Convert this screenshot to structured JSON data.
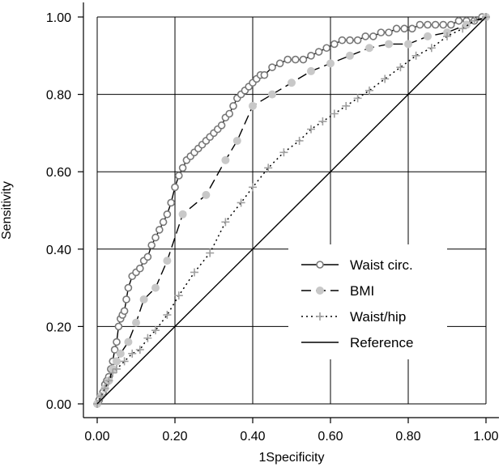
{
  "chart_data": {
    "type": "line",
    "xlabel": "1Specificity",
    "ylabel": "Sensitivity",
    "xlim": [
      0,
      1
    ],
    "ylim": [
      0,
      1
    ],
    "xticks": [
      "0.00",
      "0.20",
      "0.40",
      "0.60",
      "0.80",
      "1.00"
    ],
    "yticks": [
      "0.00",
      "0.20",
      "0.40",
      "0.60",
      "0.80",
      "1.00"
    ],
    "grid": true,
    "legend_position": "bottom-right",
    "series": [
      {
        "name": "Waist circ.",
        "style": "solid",
        "marker": "hollow-circle",
        "color": "#777777",
        "x": [
          0.0,
          0.005,
          0.01,
          0.015,
          0.02,
          0.025,
          0.03,
          0.035,
          0.04,
          0.045,
          0.05,
          0.055,
          0.06,
          0.065,
          0.07,
          0.075,
          0.08,
          0.09,
          0.1,
          0.11,
          0.12,
          0.13,
          0.14,
          0.15,
          0.16,
          0.17,
          0.18,
          0.19,
          0.2,
          0.21,
          0.22,
          0.23,
          0.24,
          0.25,
          0.26,
          0.27,
          0.28,
          0.29,
          0.3,
          0.31,
          0.32,
          0.33,
          0.34,
          0.35,
          0.36,
          0.37,
          0.38,
          0.39,
          0.4,
          0.41,
          0.42,
          0.43,
          0.45,
          0.47,
          0.49,
          0.51,
          0.53,
          0.55,
          0.57,
          0.59,
          0.61,
          0.63,
          0.65,
          0.67,
          0.69,
          0.71,
          0.73,
          0.75,
          0.77,
          0.79,
          0.81,
          0.83,
          0.85,
          0.87,
          0.89,
          0.91,
          0.93,
          0.95,
          0.97,
          0.99,
          1.0
        ],
        "y": [
          0.0,
          0.01,
          0.02,
          0.03,
          0.05,
          0.06,
          0.07,
          0.09,
          0.11,
          0.14,
          0.16,
          0.2,
          0.22,
          0.23,
          0.24,
          0.27,
          0.3,
          0.33,
          0.34,
          0.35,
          0.37,
          0.38,
          0.41,
          0.43,
          0.45,
          0.47,
          0.49,
          0.52,
          0.56,
          0.59,
          0.61,
          0.63,
          0.64,
          0.65,
          0.66,
          0.67,
          0.68,
          0.69,
          0.7,
          0.71,
          0.72,
          0.74,
          0.75,
          0.77,
          0.79,
          0.8,
          0.81,
          0.82,
          0.83,
          0.84,
          0.85,
          0.85,
          0.87,
          0.88,
          0.89,
          0.89,
          0.89,
          0.9,
          0.91,
          0.92,
          0.93,
          0.94,
          0.94,
          0.94,
          0.95,
          0.95,
          0.96,
          0.96,
          0.97,
          0.97,
          0.97,
          0.98,
          0.98,
          0.98,
          0.98,
          0.98,
          0.99,
          0.99,
          0.99,
          1.0,
          1.0
        ]
      },
      {
        "name": "BMI",
        "style": "dashed",
        "marker": "filled-circle",
        "color": "#c8c8c8",
        "x": [
          0.0,
          0.01,
          0.02,
          0.03,
          0.04,
          0.05,
          0.06,
          0.08,
          0.1,
          0.12,
          0.15,
          0.18,
          0.22,
          0.28,
          0.33,
          0.36,
          0.4,
          0.45,
          0.5,
          0.55,
          0.6,
          0.65,
          0.7,
          0.75,
          0.8,
          0.85,
          0.9,
          0.95,
          1.0
        ],
        "y": [
          0.0,
          0.02,
          0.04,
          0.06,
          0.09,
          0.11,
          0.13,
          0.16,
          0.21,
          0.27,
          0.3,
          0.37,
          0.49,
          0.54,
          0.63,
          0.68,
          0.77,
          0.8,
          0.83,
          0.86,
          0.88,
          0.9,
          0.92,
          0.93,
          0.93,
          0.95,
          0.96,
          0.98,
          1.0
        ]
      },
      {
        "name": "Waist/hip",
        "style": "dotted",
        "marker": "plus",
        "color": "#a0a0a0",
        "x": [
          0.0,
          0.01,
          0.02,
          0.03,
          0.04,
          0.05,
          0.07,
          0.09,
          0.11,
          0.13,
          0.15,
          0.18,
          0.21,
          0.25,
          0.29,
          0.33,
          0.37,
          0.4,
          0.44,
          0.48,
          0.52,
          0.55,
          0.58,
          0.61,
          0.64,
          0.67,
          0.7,
          0.74,
          0.78,
          0.82,
          0.86,
          0.9,
          0.94,
          0.97,
          1.0
        ],
        "y": [
          0.0,
          0.02,
          0.04,
          0.06,
          0.08,
          0.09,
          0.11,
          0.13,
          0.14,
          0.17,
          0.19,
          0.23,
          0.28,
          0.34,
          0.39,
          0.47,
          0.52,
          0.56,
          0.61,
          0.65,
          0.68,
          0.71,
          0.73,
          0.75,
          0.77,
          0.79,
          0.81,
          0.84,
          0.87,
          0.9,
          0.92,
          0.95,
          0.97,
          0.99,
          1.0
        ]
      },
      {
        "name": "Reference",
        "style": "solid",
        "marker": "none",
        "color": "#000000",
        "x": [
          0,
          1
        ],
        "y": [
          0,
          1
        ]
      }
    ]
  }
}
